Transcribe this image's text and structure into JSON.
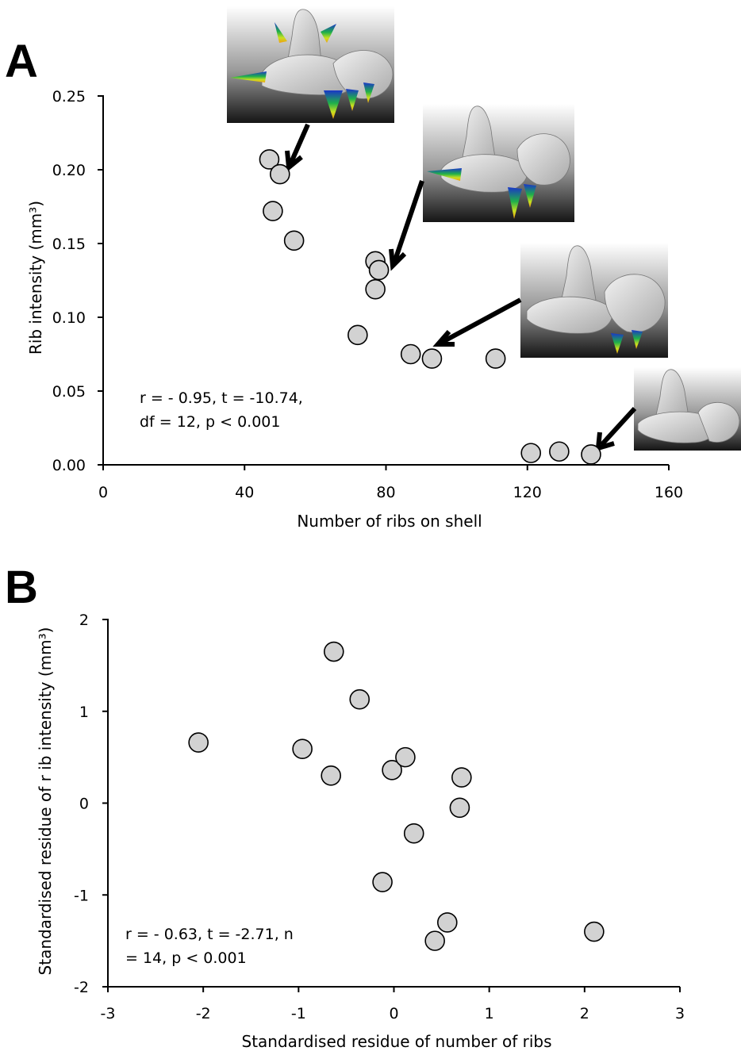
{
  "chart_data": [
    {
      "panel": "A",
      "type": "scatter",
      "xlabel": "Number of ribs on shell",
      "ylabel": "Rib intensity (mm³)",
      "xlim": [
        0,
        160
      ],
      "ylim": [
        0,
        0.25
      ],
      "xticks": [
        "0",
        "40",
        "80",
        "120",
        "160"
      ],
      "yticks": [
        "0.00",
        "0.05",
        "0.10",
        "0.15",
        "0.20",
        "0.25"
      ],
      "x": [
        47,
        50,
        48,
        54,
        77,
        78,
        77,
        72,
        87,
        93,
        111,
        121,
        129,
        138
      ],
      "y": [
        0.207,
        0.197,
        0.172,
        0.152,
        0.138,
        0.132,
        0.119,
        0.088,
        0.075,
        0.072,
        0.072,
        0.008,
        0.009,
        0.007
      ],
      "annotation": [
        "r = - 0.95, t = -10.74,",
        "df = 12, p < 0.001"
      ],
      "insets": [
        {
          "name": "shell-model-high-intensity",
          "points_to": [
            50,
            0.197
          ]
        },
        {
          "name": "shell-model-mid-intensity",
          "points_to": [
            78,
            0.132
          ]
        },
        {
          "name": "shell-model-low-intensity",
          "points_to": [
            93,
            0.072
          ]
        },
        {
          "name": "shell-model-minimal-intensity",
          "points_to": [
            138,
            0.007
          ]
        }
      ],
      "grid": false
    },
    {
      "panel": "B",
      "type": "scatter",
      "xlabel": "Standardised residue  of number of ribs",
      "ylabel": "Standardised residue  of  r ib intensity (mm³)",
      "xlim": [
        -3,
        3
      ],
      "ylim": [
        -2,
        2
      ],
      "xticks": [
        "-3",
        "-2",
        "-1",
        "0",
        "1",
        "2",
        "3"
      ],
      "yticks": [
        "-2",
        "-1",
        "0",
        "1",
        "2"
      ],
      "x": [
        -0.63,
        -0.36,
        -2.05,
        -0.96,
        -0.66,
        -0.02,
        0.12,
        0.71,
        0.69,
        0.21,
        -0.12,
        0.56,
        0.43,
        2.1
      ],
      "y": [
        1.65,
        1.13,
        0.66,
        0.59,
        0.3,
        0.36,
        0.5,
        0.28,
        -0.05,
        -0.33,
        -0.86,
        -1.3,
        -1.5,
        -1.4
      ],
      "annotation": [
        "r = - 0.63, t = -2.71, n",
        "= 14, p < 0.001"
      ],
      "grid": false
    }
  ],
  "panel_letters": [
    "A",
    "B"
  ],
  "colors": {
    "marker_fill": "#d2d2d2",
    "marker_edge": "#000000",
    "inset_bg_top": "#ffffff",
    "inset_bg_bottom": "#1a1a1a"
  }
}
